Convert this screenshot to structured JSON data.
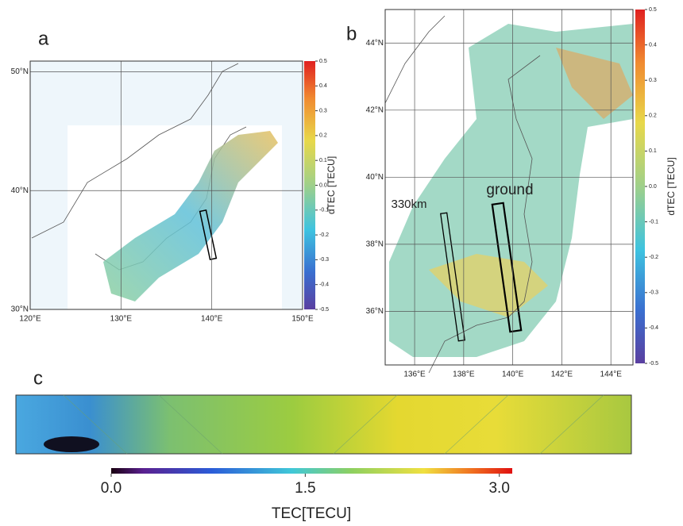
{
  "panels": [
    {
      "label": "a",
      "lon_lim": [
        120,
        150
      ],
      "lat_lim": [
        30,
        50.9
      ],
      "lon_ticks": [
        {
          "value": 120,
          "label": "120°E"
        },
        {
          "value": 130,
          "label": "130°E"
        },
        {
          "value": 140,
          "label": "140°E"
        },
        {
          "value": 150,
          "label": "150°E"
        }
      ],
      "lat_ticks": [
        {
          "value": 30,
          "label": "30°N"
        },
        {
          "value": 40,
          "label": "40°N"
        },
        {
          "value": 50,
          "label": "50°N"
        }
      ],
      "colorbar": {
        "label": "dTEC [TECU]",
        "lim": [
          -0.5,
          0.5
        ],
        "ticks": [
          0.5,
          0.4,
          0.3,
          0.2,
          0.1,
          {
            "value": 0,
            "label": "0.0"
          },
          -0.1,
          -0.2,
          -0.3,
          -0.4,
          -0.5
        ]
      }
    },
    {
      "label": "b",
      "lon_lim": [
        134.8,
        144.9
      ],
      "lat_lim": [
        34.4,
        45.0
      ],
      "lon_ticks": [
        {
          "value": 136,
          "label": "136°E"
        },
        {
          "value": 138,
          "label": "138°E"
        },
        {
          "value": 140,
          "label": "140°E"
        },
        {
          "value": 142,
          "label": "142°E"
        },
        {
          "value": 144,
          "label": "144°E"
        }
      ],
      "lat_ticks": [
        {
          "value": 36,
          "label": "36°N"
        },
        {
          "value": 38,
          "label": "38°N"
        },
        {
          "value": 40,
          "label": "40°N"
        },
        {
          "value": 42,
          "label": "42°N"
        },
        {
          "value": 44,
          "label": "44°N"
        }
      ],
      "colorbar": {
        "label": "dTEC [TECU]",
        "lim": [
          -0.5,
          0.5
        ],
        "ticks": [
          0.5,
          0.4,
          0.3,
          0.2,
          0.1,
          {
            "value": 0,
            "label": "0.0"
          },
          -0.1,
          -0.2,
          -0.3,
          -0.4,
          -0.5
        ]
      },
      "annotations": [
        "330km",
        "ground"
      ]
    },
    {
      "label": "c",
      "colorbar": {
        "label": "TEC[TECU]",
        "lim": [
          0,
          3.1
        ],
        "ticks": [
          {
            "value": 0,
            "label": "0.0"
          },
          {
            "value": 1.5,
            "label": "1.5"
          },
          {
            "value": 3,
            "label": "3.0"
          }
        ]
      }
    }
  ]
}
